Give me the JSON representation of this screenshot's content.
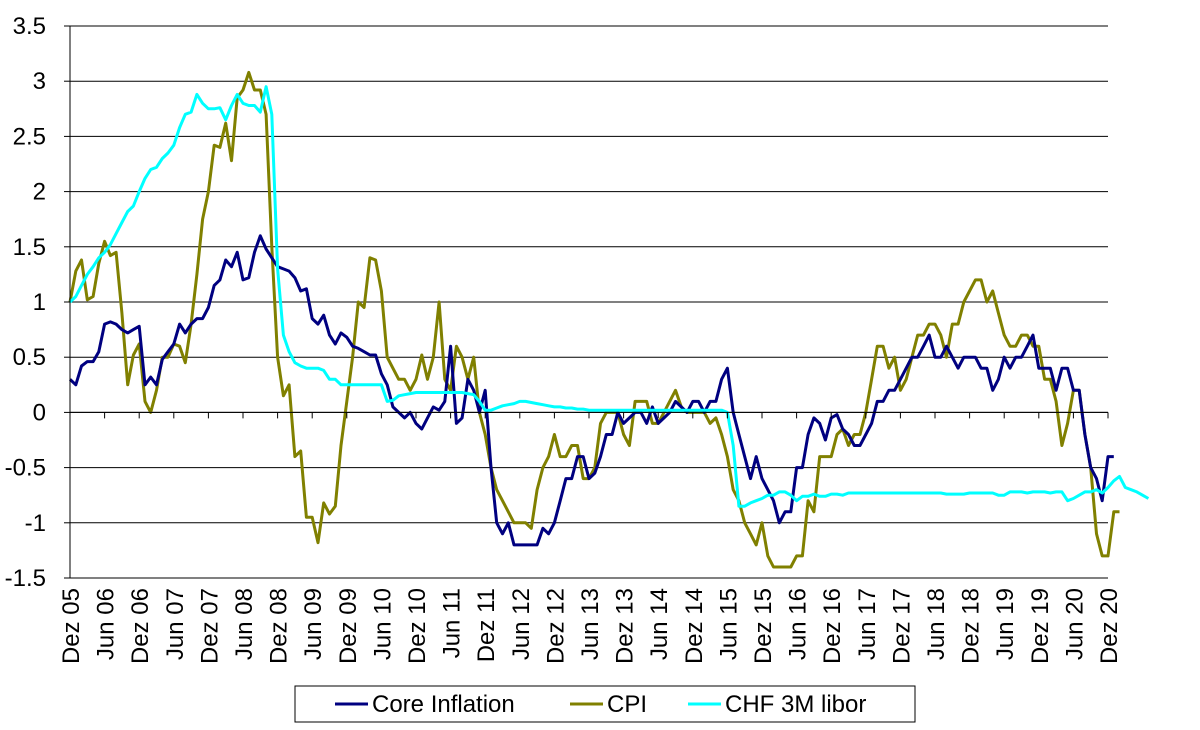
{
  "chart_data": {
    "type": "line",
    "grid": true,
    "legend_position": "bottom",
    "ylim": [
      -1.5,
      3.5
    ],
    "yticks": [
      -1.5,
      -1,
      -0.5,
      0,
      0.5,
      1,
      1.5,
      2,
      2.5,
      3,
      3.5
    ],
    "ytick_labels": [
      "-1.5",
      "-1",
      "-0.5",
      "0",
      "0.5",
      "1",
      "1.5",
      "2",
      "2.5",
      "3",
      "3.5"
    ],
    "xticks": [
      "Dez 05",
      "Jun 06",
      "Dez 06",
      "Jun 07",
      "Dez 07",
      "Jun 08",
      "Dez 08",
      "Jun 09",
      "Dez 09",
      "Jun 10",
      "Dez 10",
      "Jun 11",
      "Dez 11",
      "Jun 12",
      "Dez 12",
      "Jun 13",
      "Dez 13",
      "Jun 14",
      "Dez 14",
      "Jun 15",
      "Dez 15",
      "Jun 16",
      "Dez 16",
      "Jun 17",
      "Dez 17",
      "Jun 18",
      "Dez 18",
      "Jun 19",
      "Dez 19",
      "Jun 20",
      "Dez 20"
    ],
    "series": [
      {
        "name": "Core Inflation",
        "color": "#000080",
        "values": [
          0.3,
          0.25,
          0.42,
          0.46,
          0.46,
          0.55,
          0.8,
          0.82,
          0.8,
          0.75,
          0.72,
          0.75,
          0.78,
          0.25,
          0.32,
          0.25,
          0.48,
          0.55,
          0.62,
          0.8,
          0.72,
          0.8,
          0.85,
          0.85,
          0.95,
          1.15,
          1.2,
          1.38,
          1.32,
          1.45,
          1.2,
          1.22,
          1.45,
          1.6,
          1.48,
          1.4,
          1.32,
          1.3,
          1.28,
          1.22,
          1.1,
          1.12,
          0.85,
          0.8,
          0.88,
          0.7,
          0.62,
          0.72,
          0.68,
          0.6,
          0.58,
          0.55,
          0.52,
          0.52,
          0.35,
          0.25,
          0.05,
          0.0,
          -0.05,
          0.0,
          -0.1,
          -0.15,
          -0.05,
          0.05,
          0.02,
          0.1,
          0.6,
          -0.1,
          -0.05,
          0.3,
          0.2,
          0.0,
          0.2,
          -0.5,
          -1.0,
          -1.1,
          -1.0,
          -1.2,
          -1.2,
          -1.2,
          -1.2,
          -1.2,
          -1.05,
          -1.1,
          -1.0,
          -0.8,
          -0.6,
          -0.6,
          -0.4,
          -0.4,
          -0.6,
          -0.55,
          -0.4,
          -0.2,
          -0.2,
          0.0,
          -0.1,
          -0.05,
          0.0,
          0.0,
          -0.1,
          0.05,
          -0.1,
          -0.05,
          0.0,
          0.1,
          0.05,
          0.0,
          0.1,
          0.1,
          0.0,
          0.1,
          0.1,
          0.3,
          0.4,
          0.0,
          -0.2,
          -0.4,
          -0.6,
          -0.4,
          -0.6,
          -0.7,
          -0.8,
          -1.0,
          -0.9,
          -0.9,
          -0.5,
          -0.5,
          -0.2,
          -0.05,
          -0.1,
          -0.25,
          -0.05,
          -0.02,
          -0.15,
          -0.2,
          -0.3,
          -0.3,
          -0.2,
          -0.1,
          0.1,
          0.1,
          0.2,
          0.2,
          0.3,
          0.4,
          0.5,
          0.5,
          0.6,
          0.7,
          0.5,
          0.5,
          0.6,
          0.5,
          0.4,
          0.5,
          0.5,
          0.5,
          0.4,
          0.4,
          0.2,
          0.3,
          0.5,
          0.4,
          0.5,
          0.5,
          0.6,
          0.7,
          0.4,
          0.4,
          0.4,
          0.2,
          0.4,
          0.4,
          0.2,
          0.2,
          -0.2,
          -0.5,
          -0.6,
          -0.8,
          -0.4,
          -0.4
        ]
      },
      {
        "name": "CPI",
        "color": "#808000",
        "values": [
          1.0,
          1.28,
          1.38,
          1.02,
          1.05,
          1.35,
          1.55,
          1.42,
          1.45,
          0.9,
          0.25,
          0.52,
          0.62,
          0.1,
          0.0,
          0.2,
          0.5,
          0.5,
          0.62,
          0.6,
          0.45,
          0.8,
          1.25,
          1.75,
          2.0,
          2.42,
          2.4,
          2.62,
          2.28,
          2.85,
          2.92,
          3.08,
          2.92,
          2.92,
          2.7,
          1.5,
          0.5,
          0.15,
          0.25,
          -0.4,
          -0.35,
          -0.95,
          -0.95,
          -1.18,
          -0.82,
          -0.92,
          -0.85,
          -0.3,
          0.1,
          0.5,
          1.0,
          0.95,
          1.4,
          1.38,
          1.1,
          0.5,
          0.4,
          0.3,
          0.3,
          0.2,
          0.3,
          0.52,
          0.3,
          0.5,
          1.0,
          0.3,
          0.2,
          0.6,
          0.5,
          0.3,
          0.5,
          0.0,
          -0.2,
          -0.5,
          -0.7,
          -0.8,
          -0.9,
          -1.0,
          -1.0,
          -1.0,
          -1.05,
          -0.7,
          -0.5,
          -0.4,
          -0.2,
          -0.4,
          -0.4,
          -0.3,
          -0.3,
          -0.6,
          -0.6,
          -0.5,
          -0.1,
          0.0,
          0.0,
          0.0,
          -0.2,
          -0.3,
          0.1,
          0.1,
          0.1,
          -0.1,
          -0.1,
          0.0,
          0.1,
          0.2,
          0.05,
          0.0,
          0.0,
          0.0,
          0.0,
          -0.1,
          -0.05,
          -0.2,
          -0.4,
          -0.7,
          -0.8,
          -1.0,
          -1.1,
          -1.2,
          -1.0,
          -1.3,
          -1.4,
          -1.4,
          -1.4,
          -1.4,
          -1.3,
          -1.3,
          -0.8,
          -0.9,
          -0.4,
          -0.4,
          -0.4,
          -0.2,
          -0.15,
          -0.3,
          -0.2,
          -0.2,
          0.0,
          0.3,
          0.6,
          0.6,
          0.4,
          0.5,
          0.2,
          0.3,
          0.5,
          0.7,
          0.7,
          0.8,
          0.8,
          0.7,
          0.5,
          0.8,
          0.8,
          1.0,
          1.1,
          1.2,
          1.2,
          1.0,
          1.1,
          0.9,
          0.7,
          0.6,
          0.6,
          0.7,
          0.7,
          0.6,
          0.6,
          0.3,
          0.3,
          0.1,
          -0.3,
          -0.1,
          0.2,
          0.2,
          -0.2,
          -0.5,
          -1.1,
          -1.3,
          -1.3,
          -0.9,
          -0.9
        ]
      },
      {
        "name": "CHF 3M libor",
        "color": "#00ffff",
        "values": [
          1.0,
          1.05,
          1.15,
          1.25,
          1.32,
          1.4,
          1.45,
          1.52,
          1.62,
          1.72,
          1.82,
          1.87,
          2.0,
          2.12,
          2.2,
          2.22,
          2.3,
          2.35,
          2.42,
          2.58,
          2.7,
          2.72,
          2.88,
          2.8,
          2.75,
          2.75,
          2.76,
          2.65,
          2.78,
          2.88,
          2.8,
          2.78,
          2.78,
          2.72,
          2.95,
          2.7,
          1.3,
          0.7,
          0.55,
          0.45,
          0.42,
          0.4,
          0.4,
          0.4,
          0.38,
          0.3,
          0.3,
          0.25,
          0.25,
          0.25,
          0.25,
          0.25,
          0.25,
          0.25,
          0.25,
          0.1,
          0.11,
          0.15,
          0.16,
          0.17,
          0.18,
          0.18,
          0.18,
          0.18,
          0.18,
          0.18,
          0.18,
          0.18,
          0.18,
          0.17,
          0.16,
          0.1,
          0.02,
          0.02,
          0.04,
          0.06,
          0.07,
          0.08,
          0.1,
          0.1,
          0.09,
          0.08,
          0.07,
          0.06,
          0.05,
          0.05,
          0.04,
          0.04,
          0.03,
          0.03,
          0.02,
          0.02,
          0.02,
          0.02,
          0.02,
          0.02,
          0.02,
          0.02,
          0.02,
          0.02,
          0.02,
          0.02,
          0.02,
          0.02,
          0.02,
          0.02,
          0.02,
          0.02,
          0.02,
          0.02,
          0.02,
          0.02,
          0.02,
          0.02,
          0.0,
          -0.3,
          -0.85,
          -0.85,
          -0.82,
          -0.8,
          -0.78,
          -0.75,
          -0.75,
          -0.72,
          -0.72,
          -0.75,
          -0.8,
          -0.76,
          -0.76,
          -0.74,
          -0.76,
          -0.76,
          -0.74,
          -0.74,
          -0.75,
          -0.73,
          -0.73,
          -0.73,
          -0.73,
          -0.73,
          -0.73,
          -0.73,
          -0.73,
          -0.73,
          -0.73,
          -0.73,
          -0.73,
          -0.73,
          -0.73,
          -0.73,
          -0.73,
          -0.73,
          -0.74,
          -0.74,
          -0.74,
          -0.74,
          -0.73,
          -0.73,
          -0.73,
          -0.73,
          -0.73,
          -0.75,
          -0.75,
          -0.72,
          -0.72,
          -0.72,
          -0.73,
          -0.72,
          -0.72,
          -0.72,
          -0.73,
          -0.72,
          -0.72,
          -0.8,
          -0.78,
          -0.75,
          -0.72,
          -0.72,
          -0.7,
          -0.73,
          -0.68,
          -0.62,
          -0.58,
          -0.68,
          -0.7,
          -0.72,
          -0.75,
          -0.78
        ]
      }
    ]
  }
}
